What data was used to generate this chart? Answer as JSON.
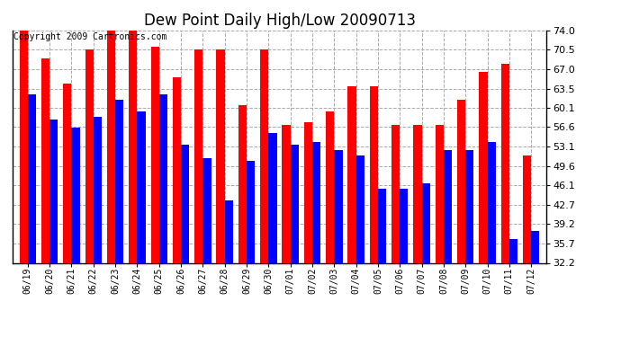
{
  "title": "Dew Point Daily High/Low 20090713",
  "copyright": "Copyright 2009 Cartronics.com",
  "dates": [
    "06/19",
    "06/20",
    "06/21",
    "06/22",
    "06/23",
    "06/24",
    "06/25",
    "06/26",
    "06/27",
    "06/28",
    "06/29",
    "06/30",
    "07/01",
    "07/02",
    "07/03",
    "07/04",
    "07/05",
    "07/06",
    "07/07",
    "07/08",
    "07/09",
    "07/10",
    "07/11",
    "07/12"
  ],
  "highs": [
    74.0,
    69.0,
    64.5,
    70.5,
    74.0,
    74.0,
    71.0,
    65.5,
    70.5,
    70.5,
    60.5,
    70.5,
    57.0,
    57.5,
    59.5,
    64.0,
    64.0,
    57.0,
    57.0,
    57.0,
    61.5,
    66.5,
    68.0,
    51.5
  ],
  "lows": [
    62.5,
    58.0,
    56.5,
    58.5,
    61.5,
    59.5,
    62.5,
    53.5,
    51.0,
    43.5,
    50.5,
    55.5,
    53.5,
    54.0,
    52.5,
    51.5,
    45.5,
    45.5,
    46.5,
    52.5,
    52.5,
    54.0,
    36.5,
    38.0
  ],
  "high_color": "#ff0000",
  "low_color": "#0000ff",
  "background_color": "#ffffff",
  "grid_color": "#aaaaaa",
  "ylim_min": 32.2,
  "ylim_max": 74.0,
  "yticks": [
    32.2,
    35.7,
    39.2,
    42.7,
    46.1,
    49.6,
    53.1,
    56.6,
    60.1,
    63.5,
    67.0,
    70.5,
    74.0
  ],
  "title_fontsize": 12,
  "copyright_fontsize": 7,
  "bar_width": 0.38
}
